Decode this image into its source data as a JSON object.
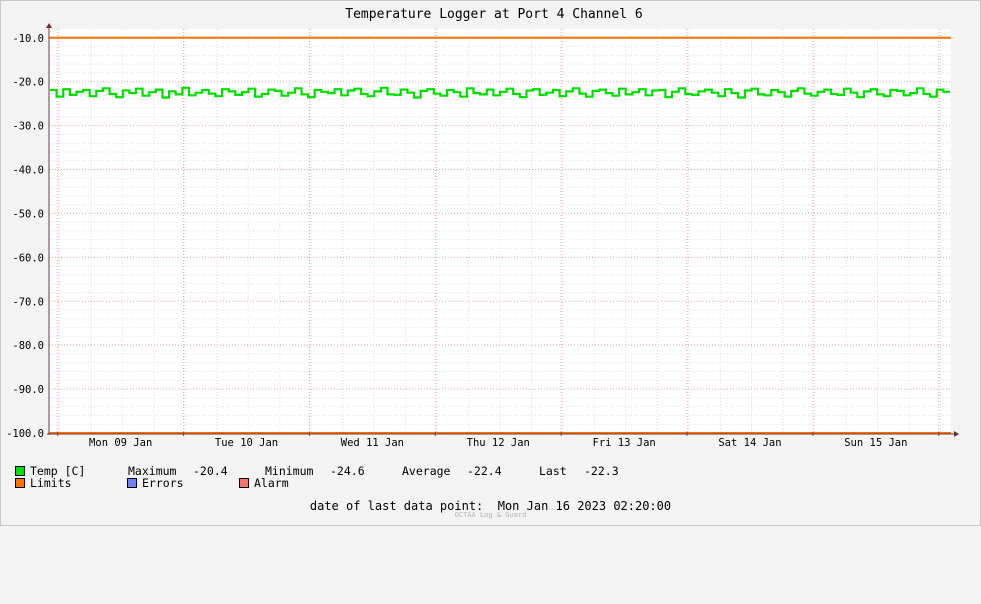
{
  "chart_data": {
    "type": "line",
    "title": "Temperature Logger at Port 4 Channel 6",
    "xlabel": "",
    "ylabel": "",
    "x_start": "2023-01-08 22:20",
    "x_end": "2023-01-16 02:20",
    "ylim": [
      -100,
      -8
    ],
    "yticks": [
      "-10.0",
      "-20.0",
      "-30.0",
      "-40.0",
      "-50.0",
      "-60.0",
      "-70.0",
      "-80.0",
      "-90.0",
      "-100.0"
    ],
    "xtick_labels": [
      "Mon 09 Jan",
      "Tue 10 Jan",
      "Wed 11 Jan",
      "Thu 12 Jan",
      "Fri 13 Jan",
      "Sat 14 Jan",
      "Sun 15 Jan"
    ],
    "grid": true,
    "series": [
      {
        "name": "Temp [C]",
        "color": "#00e000",
        "values": [
          -21.9,
          -23.4,
          -21.7,
          -23.0,
          -22.3,
          -21.9,
          -23.3,
          -22.1,
          -21.5,
          -22.8,
          -23.5,
          -22.0,
          -22.6,
          -21.6,
          -23.2,
          -22.4,
          -21.8,
          -23.6,
          -22.2,
          -22.9,
          -21.4,
          -23.1,
          -22.5,
          -21.9,
          -22.7,
          -23.3,
          -21.7,
          -22.2,
          -23.0,
          -22.4,
          -21.6,
          -23.4,
          -22.8,
          -21.8,
          -22.1,
          -23.2,
          -22.5,
          -21.5,
          -22.9,
          -23.5,
          -21.9,
          -22.3,
          -22.6,
          -21.7,
          -23.1,
          -22.0,
          -21.6,
          -22.8,
          -23.3,
          -22.2,
          -21.4,
          -22.9,
          -23.0,
          -21.8,
          -22.5,
          -23.6,
          -22.1,
          -21.7,
          -22.7,
          -23.2,
          -21.9,
          -22.4,
          -23.4,
          -21.5,
          -22.6,
          -22.9,
          -21.8,
          -23.1,
          -22.3,
          -21.6,
          -22.8,
          -23.5,
          -22.0,
          -21.7,
          -23.0,
          -22.5,
          -21.9,
          -23.3,
          -22.2,
          -21.5,
          -22.7,
          -23.4,
          -22.1,
          -21.8,
          -22.6,
          -23.2,
          -21.6,
          -22.9,
          -22.4,
          -21.7,
          -23.1,
          -22.0,
          -21.9,
          -23.5,
          -22.3,
          -21.5,
          -22.8,
          -23.0,
          -22.2,
          -21.8,
          -22.5,
          -23.3,
          -21.7,
          -22.6,
          -23.6,
          -22.0,
          -21.6,
          -22.9,
          -23.1,
          -21.9,
          -22.4,
          -23.4,
          -22.1,
          -21.5,
          -22.7,
          -23.2,
          -22.3,
          -21.8,
          -22.8,
          -23.0,
          -21.6,
          -22.5,
          -23.5,
          -22.2,
          -21.7,
          -22.9,
          -23.3,
          -21.9,
          -22.1,
          -23.1,
          -22.6,
          -21.5,
          -22.8,
          -23.4,
          -21.8,
          -22.3
        ]
      }
    ],
    "limits": {
      "name": "Limits",
      "color": "#ff7000",
      "values": [
        -10,
        -100
      ]
    }
  },
  "legend": {
    "temp": {
      "label": "Temp [C]",
      "color": "#00e000"
    },
    "limits": {
      "label": "Limits",
      "color": "#ff7000"
    },
    "errors": {
      "label": "Errors",
      "color": "#7080ff"
    },
    "alarm": {
      "label": "Alarm",
      "color": "#ff7070"
    },
    "stats": {
      "maximum_label": "Maximum",
      "maximum_value": "-20.4",
      "minimum_label": "Minimum",
      "minimum_value": "-24.6",
      "average_label": "Average",
      "average_value": "-22.4",
      "last_label": "Last",
      "last_value": "-22.3"
    }
  },
  "footer": {
    "last_data_point_label": "date of last data point:",
    "last_data_point_value": "Mon Jan 16 2023 02:20:00",
    "watermark": "OCTAA Log & Guard"
  }
}
